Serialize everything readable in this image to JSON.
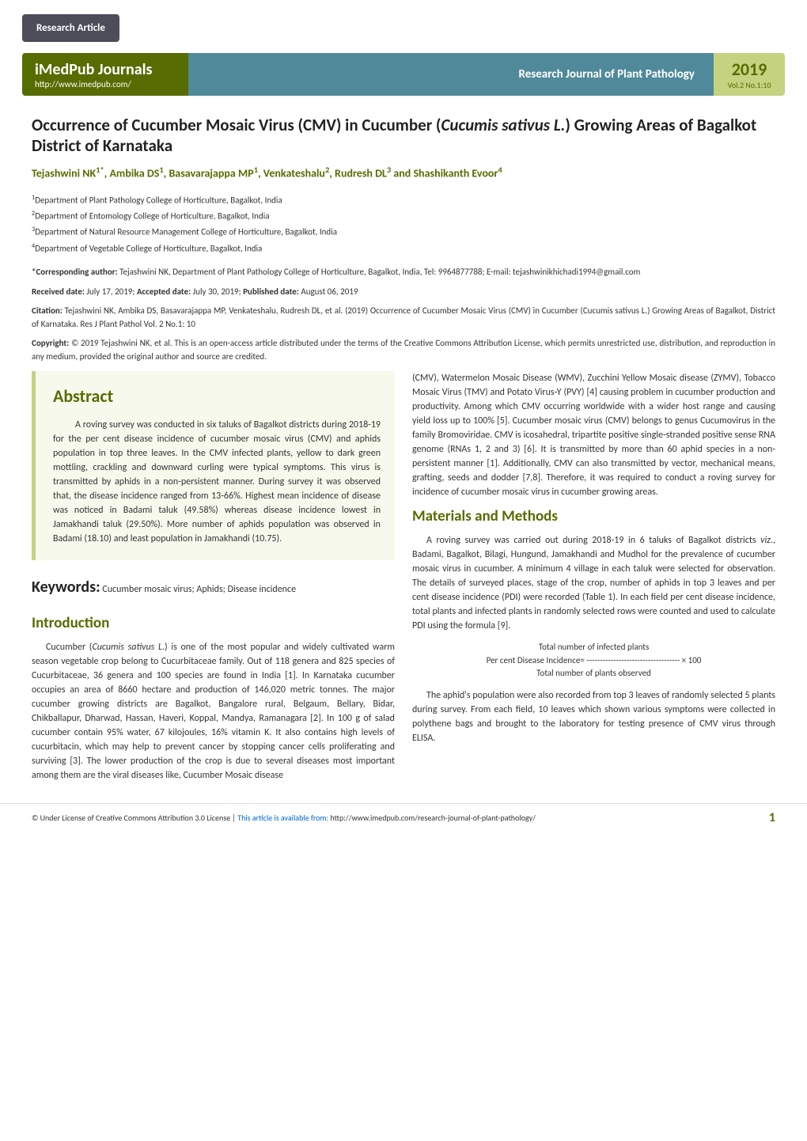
{
  "colors": {
    "accent_green": "#576c00",
    "light_green": "#c5d280",
    "teal": "#508a9a",
    "dark_box": "#4d4d5a",
    "abstract_bg": "#f7f9ed",
    "text": "#333333",
    "link": "#0066cc",
    "white": "#ffffff"
  },
  "typography": {
    "body_fontsize": 12,
    "title_fontsize": 21,
    "section_heading_fontsize": 19,
    "abstract_heading_fontsize": 22,
    "keywords_label_fontsize": 20,
    "meta_fontsize": 11,
    "footer_fontsize": 10
  },
  "header": {
    "article_type": "Research Article",
    "journals_title": "iMedPub Journals",
    "journals_url": "http://www.imedpub.com/",
    "journal_name": "Research Journal of Plant Pathology",
    "year": "2019",
    "volume": "Vol.2 No.1:10"
  },
  "title_plain": "Occurrence of Cucumber Mosaic Virus (CMV) in Cucumber (",
  "title_italic": "Cucumis sativus L.",
  "title_tail": ") Growing Areas of Bagalkot District of Karnataka",
  "authors_html": "Tejashwini NK<sup>1*</sup>, Ambika DS<sup>1</sup>, Basavarajappa MP<sup>1</sup>, Venkateshalu<sup>2</sup>, Rudresh DL<sup>3</sup> and Shashikanth Evoor<sup>4</sup>",
  "affiliations": [
    "1Department of Plant Pathology College of Horticulture, Bagalkot, India",
    "2Department of Entomology College of Horticulture, Bagalkot, India",
    "3Department of Natural Resource Management College of Horticulture, Bagalkot, India",
    "4Department of Vegetable College of Horticulture, Bagalkot, India"
  ],
  "corresponding": {
    "label": "*Corresponding author:",
    "text": " Tejashwini NK, Department of Plant Pathology College of Horticulture, Bagalkot, India, Tel: 9964877788; E-mail: tejashwinikhichadi1994@gmail.com"
  },
  "dates": {
    "received_label": "Received date:",
    "received": " July 17, 2019; ",
    "accepted_label": "Accepted date:",
    "accepted": " July 30, 2019; ",
    "published_label": "Published date:",
    "published": " August 06, 2019"
  },
  "citation": {
    "label": "Citation:",
    "text": " Tejashwini NK, Ambika DS, Basavarajappa MP, Venkateshalu, Rudresh DL, et al. (2019) Occurrence of Cucumber Mosaic Virus (CMV) in Cucumber (Cucumis sativus L.) Growing Areas of Bagalkot, District of Karnataka. Res J Plant Pathol Vol. 2 No.1: 10"
  },
  "copyright": {
    "label": "Copyright:",
    "text": " © 2019 Tejashwini NK, et al. This is an open-access article distributed under the terms of the Creative Commons Attribution License, which permits unrestricted use, distribution, and reproduction in any medium, provided the original author and source are credited."
  },
  "abstract": {
    "heading": "Abstract",
    "text": "A roving survey was conducted in six taluks of Bagalkot districts during 2018-19 for the per cent disease incidence of cucumber mosaic virus (CMV) and aphids population in top three leaves. In the CMV infected plants, yellow to dark green mottling, crackling and downward curling were typical symptoms. This virus is transmitted by aphids in a non-persistent manner. During survey it was observed that, the disease incidence ranged from 13-66%. Highest mean incidence of disease was noticed in Badami taluk (49.58%) whereas disease incidence lowest in Jamakhandi taluk (29.50%). More number of aphids population was observed in Badami (18.10) and least population in Jamakhandi (10.75)."
  },
  "keywords": {
    "label": "Keywords:",
    "text": " Cucumber mosaic virus; Aphids; Disease incidence"
  },
  "sections": {
    "intro_heading": "Introduction",
    "intro_p1a": "Cucumber (",
    "intro_p1_italic": "Cucumis sativus L",
    "intro_p1b": ".) is one of the most popular and widely cultivated warm season vegetable crop belong to Cucurbitaceae family. Out of 118 genera and 825 species of Cucurbitaceae, 36 genera and 100 species are found in India [1]. In Karnataka cucumber occupies an area of 8660 hectare and production of 146,020 metric tonnes. The major cucumber growing districts are Bagalkot, Bangalore rural, Belgaum, Bellary, Bidar, Chikballapur, Dharwad, Hassan, Haveri, Koppal, Mandya, Ramanagara [2]. In 100 g of salad cucumber contain 95% water, 67 kilojoules, 16% vitamin K. It also contains high levels of cucurbitacin, which may help to prevent cancer by stopping cancer cells proliferating and surviving [3]. The lower production of the crop is due to several diseases most important among them are the viral diseases like, Cucumber Mosaic disease",
    "right_p1": "(CMV), Watermelon Mosaic Disease (WMV), Zucchini Yellow Mosaic disease (ZYMV), Tobacco Mosaic Virus (TMV) and Potato Virus-Y (PVY) [4] causing problem in cucumber production and productivity. Among which CMV occurring worldwide with a wider host range and causing yield loss up to 100% [5]. Cucumber mosaic virus (CMV) belongs to genus Cucumovirus in the family Bromoviridae. CMV is icosahedral, tripartite positive single-stranded positive sense RNA genome (RNAs 1, 2 and 3) [6]. It is transmitted by more than 60 aphid species in a non-persistent manner [1]. Additionally, CMV can also transmitted by vector, mechanical means, grafting, seeds and dodder [7,8]. Therefore, it was required to conduct a roving survey for incidence of cucumber mosaic virus in cucumber growing areas.",
    "mm_heading": "Materials and Methods",
    "mm_p1a": "A roving survey was carried out during 2018-19 in 6 taluks of Bagalkot districts ",
    "mm_p1_italic": "viz",
    "mm_p1b": "., Badami, Bagalkot, Bilagi, Hungund, Jamakhandi and Mudhol for the prevalence of cucumber mosaic virus in cucumber. A minimum 4 village in each taluk were selected for observation. The details of surveyed places, stage of the crop, number of aphids in top 3 leaves and per cent disease incidence (PDI) were recorded (Table 1). In each field per cent disease incidence, total plants and infected plants in randomly selected rows were counted and used to calculate PDI using the formula [9].",
    "formula_top": "Total number of infected plants",
    "formula_mid": "Per cent Disease Incidence= ----------------------------------- × 100",
    "formula_bot": "Total number of plants observed",
    "mm_p2": "The aphid's population were also recorded from top 3 leaves of randomly selected 5 plants during survey. From each field, 10 leaves which shown various symptoms were collected in polythene bags and brought to the laboratory for testing presence of CMV virus through ELISA."
  },
  "footer": {
    "license_text": "© Under License of Creative Commons Attribution 3.0 License | ",
    "link_label": "This article is available from:",
    "link_url": " http://www.imedpub.com/research-journal-of-plant-pathology/",
    "page_number": "1"
  }
}
